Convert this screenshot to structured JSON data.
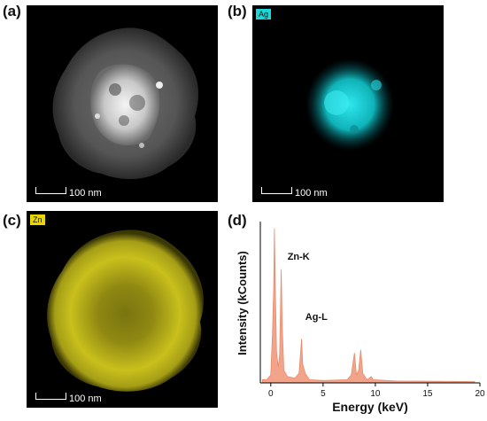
{
  "panels": {
    "a": {
      "label": "(a)",
      "scale_text": "100 nm"
    },
    "b": {
      "label": "(b)",
      "element": "Ag",
      "badge_color": "#18d8d8",
      "map_color": "#19c8d0",
      "scale_text": "100 nm"
    },
    "c": {
      "label": "(c)",
      "element": "Zn",
      "badge_color": "#e8d800",
      "map_color": "#d8d020",
      "scale_text": "100 nm"
    },
    "d": {
      "label": "(d)"
    }
  },
  "chart_data": {
    "type": "area",
    "xlabel": "Energy (keV)",
    "ylabel": "Intensity (kCounts)",
    "xlim": [
      -1,
      20
    ],
    "x_ticks": [
      0,
      5,
      10,
      15,
      20
    ],
    "fill_color": "#f2a48a",
    "line_color": "#ea8a6a",
    "points": [
      [
        -0.8,
        0.02
      ],
      [
        -0.4,
        0.02
      ],
      [
        0.0,
        0.05
      ],
      [
        0.15,
        0.3
      ],
      [
        0.28,
        0.6
      ],
      [
        0.35,
        0.98
      ],
      [
        0.45,
        0.55
      ],
      [
        0.55,
        0.2
      ],
      [
        0.7,
        0.1
      ],
      [
        0.85,
        0.18
      ],
      [
        1.0,
        0.72
      ],
      [
        1.1,
        0.35
      ],
      [
        1.25,
        0.08
      ],
      [
        1.6,
        0.04
      ],
      [
        2.3,
        0.03
      ],
      [
        2.7,
        0.06
      ],
      [
        2.95,
        0.28
      ],
      [
        3.05,
        0.12
      ],
      [
        3.3,
        0.06
      ],
      [
        3.7,
        0.02
      ],
      [
        5.0,
        0.015
      ],
      [
        7.3,
        0.02
      ],
      [
        7.7,
        0.05
      ],
      [
        8.0,
        0.19
      ],
      [
        8.2,
        0.05
      ],
      [
        8.4,
        0.08
      ],
      [
        8.6,
        0.21
      ],
      [
        8.8,
        0.06
      ],
      [
        9.2,
        0.02
      ],
      [
        9.6,
        0.04
      ],
      [
        9.8,
        0.02
      ],
      [
        12.0,
        0.012
      ],
      [
        16.0,
        0.01
      ],
      [
        19.5,
        0.008
      ]
    ],
    "annotations": [
      {
        "text": "Zn-K",
        "x": 1.6,
        "y": 0.78
      },
      {
        "text": "Ag-L",
        "x": 3.3,
        "y": 0.4
      }
    ]
  }
}
